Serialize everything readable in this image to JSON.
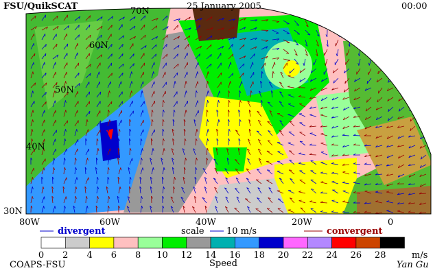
{
  "header": {
    "title": "FSU/QuikSCAT",
    "date": "25 January 2005",
    "time": "00:00"
  },
  "map": {
    "lat_labels": [
      "70N",
      "60N",
      "50N",
      "40N",
      "30N"
    ],
    "lon_labels": [
      "80W",
      "60W",
      "40W",
      "20W",
      "0"
    ]
  },
  "legend": {
    "divergent": "divergent",
    "scale": "scale",
    "scale_value": "10 m/s",
    "convergent": "convergent",
    "speed_ticks": [
      "0",
      "2",
      "4",
      "6",
      "8",
      "10",
      "12",
      "14",
      "16",
      "18",
      "20",
      "22",
      "24",
      "26",
      "28"
    ],
    "unit": "m/s",
    "speed_colors": [
      "#ffffff",
      "#cccccc",
      "#ffff00",
      "#ffc0c0",
      "#99ff99",
      "#00ee00",
      "#999999",
      "#00b0b0",
      "#3399ff",
      "#0000cc",
      "#ff66ff",
      "#b388ff",
      "#ff0000",
      "#cc4400",
      "#000000"
    ]
  },
  "footer": {
    "credit": "COAPS-FSU",
    "axis_label": "Speed",
    "author": "Yan Gu"
  }
}
